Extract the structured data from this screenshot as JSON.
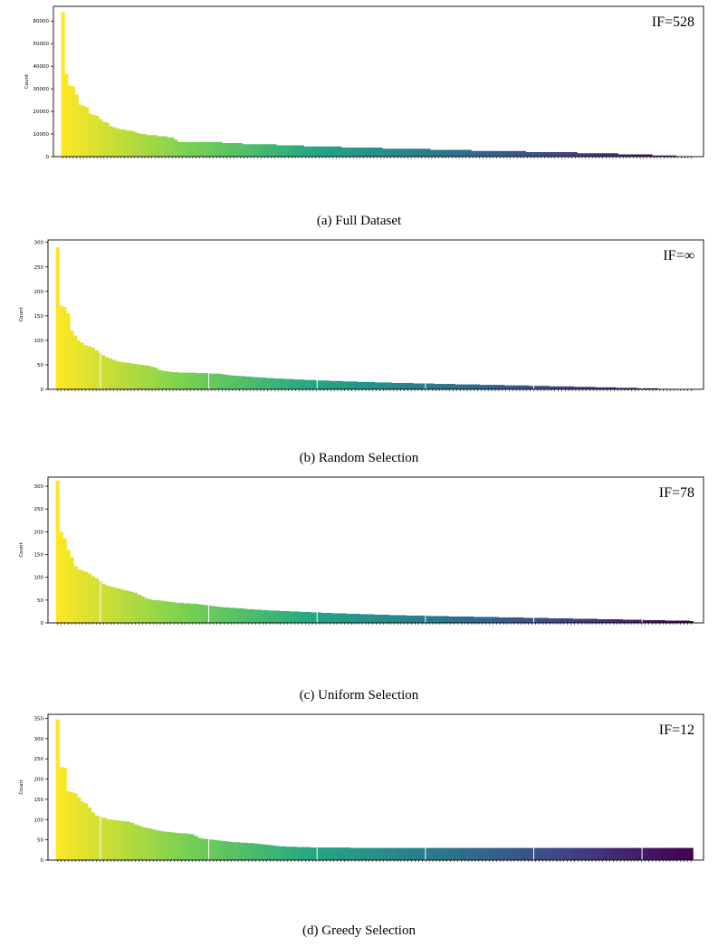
{
  "chart_data": [
    {
      "type": "bar",
      "caption": "(a) Full Dataset",
      "ylabel": "Count",
      "annotation": "IF=528",
      "yticks": [
        0,
        10000,
        20000,
        30000,
        40000,
        50000,
        60000
      ],
      "ylim": [
        0,
        66500
      ],
      "n_bars": 180,
      "values": [
        64000,
        36500,
        31500,
        31000,
        27500,
        23000,
        22500,
        22000,
        19000,
        18500,
        18000,
        16500,
        15500,
        15000,
        13500,
        13000,
        12500,
        12000,
        12000,
        11500,
        11500,
        11000,
        10500,
        10000,
        10000,
        9500,
        9500,
        9500,
        9000,
        9000,
        9000,
        8500,
        8500,
        7500,
        6500,
        6500,
        6500,
        6500,
        6500,
        6500,
        6500,
        6500,
        6500,
        6500,
        6500,
        6500,
        6500,
        6000,
        6000,
        6000,
        6000,
        6000,
        6000,
        5500,
        5500,
        5500,
        5500,
        5500,
        5500,
        5500,
        5500,
        5500,
        5500,
        5000,
        5000,
        5000,
        5000,
        5000,
        5000,
        5000,
        5000,
        4500,
        4500,
        4500,
        4500,
        4500,
        4500,
        4500,
        4500,
        4500,
        4500,
        4500,
        4000,
        4000,
        4000,
        4000,
        4000,
        4000,
        4000,
        4000,
        4000,
        4000,
        4000,
        4000,
        3500,
        3500,
        3500,
        3500,
        3500,
        3500,
        3500,
        3500,
        3500,
        3500,
        3500,
        3500,
        3500,
        3500,
        3000,
        3000,
        3000,
        3000,
        3000,
        3000,
        3000,
        3000,
        3000,
        3000,
        3000,
        3000,
        2500,
        2500,
        2500,
        2500,
        2500,
        2500,
        2500,
        2500,
        2500,
        2500,
        2500,
        2500,
        2500,
        2500,
        2500,
        2500,
        2000,
        2000,
        2000,
        2000,
        2000,
        2000,
        2000,
        2000,
        2000,
        2000,
        2000,
        2000,
        2000,
        2000,
        2000,
        1500,
        1500,
        1500,
        1500,
        1500,
        1500,
        1500,
        1500,
        1500,
        1500,
        1500,
        1500,
        1000,
        1000,
        1000,
        1000,
        1000,
        1000,
        1000,
        1000,
        1000,
        1000,
        500,
        500,
        500,
        500,
        500,
        500,
        500,
        200,
        200,
        120,
        120,
        120
      ]
    },
    {
      "type": "bar",
      "caption": "(b) Random Selection",
      "ylabel": "Count",
      "annotation": "IF=∞",
      "yticks": [
        0,
        50,
        100,
        150,
        200,
        250,
        300
      ],
      "ylim": [
        0,
        305
      ],
      "n_bars": 180,
      "values": [
        290,
        170,
        168,
        155,
        120,
        110,
        100,
        95,
        90,
        88,
        85,
        80,
        75,
        70,
        66,
        63,
        60,
        58,
        56,
        55,
        54,
        53,
        52,
        51,
        50,
        49,
        48,
        46,
        44,
        40,
        38,
        37,
        36,
        35,
        35,
        34,
        34,
        34,
        34,
        34,
        33,
        33,
        33,
        33,
        32,
        32,
        32,
        31,
        30,
        29,
        28,
        28,
        27,
        27,
        26,
        26,
        25,
        25,
        24,
        24,
        23,
        23,
        22,
        22,
        22,
        21,
        21,
        21,
        20,
        20,
        20,
        19,
        19,
        19,
        18,
        18,
        18,
        18,
        17,
        17,
        17,
        17,
        16,
        16,
        16,
        16,
        15,
        15,
        15,
        15,
        15,
        14,
        14,
        14,
        14,
        14,
        13,
        13,
        13,
        13,
        13,
        13,
        12,
        12,
        12,
        12,
        12,
        12,
        11,
        11,
        11,
        11,
        11,
        11,
        10,
        10,
        10,
        10,
        10,
        10,
        10,
        9,
        9,
        9,
        9,
        9,
        9,
        9,
        8,
        8,
        8,
        8,
        8,
        8,
        8,
        7,
        7,
        7,
        7,
        7,
        7,
        6,
        6,
        6,
        6,
        6,
        6,
        6,
        5,
        5,
        5,
        5,
        5,
        5,
        4,
        4,
        4,
        4,
        4,
        4,
        3,
        3,
        3,
        3,
        3,
        3,
        2,
        2,
        2,
        2,
        2,
        2,
        1,
        1,
        1,
        0,
        0,
        0,
        0,
        0,
        0,
        0
      ]
    },
    {
      "type": "bar",
      "caption": "(c) Uniform Selection",
      "ylabel": "Count",
      "annotation": "IF=78",
      "yticks": [
        0,
        50,
        100,
        150,
        200,
        250,
        300
      ],
      "ylim": [
        0,
        320
      ],
      "n_bars": 180,
      "values": [
        312,
        200,
        185,
        160,
        145,
        125,
        118,
        115,
        112,
        108,
        102,
        98,
        92,
        85,
        82,
        80,
        78,
        76,
        74,
        72,
        70,
        68,
        66,
        62,
        58,
        54,
        52,
        50,
        50,
        49,
        48,
        47,
        46,
        45,
        44,
        44,
        43,
        43,
        42,
        42,
        41,
        40,
        39,
        38,
        37,
        36,
        35,
        34,
        34,
        33,
        33,
        32,
        32,
        31,
        30,
        30,
        29,
        29,
        28,
        28,
        27,
        27,
        27,
        26,
        26,
        26,
        25,
        25,
        25,
        24,
        24,
        24,
        23,
        23,
        23,
        22,
        22,
        22,
        21,
        21,
        21,
        21,
        20,
        20,
        20,
        20,
        19,
        19,
        19,
        19,
        18,
        18,
        18,
        18,
        17,
        17,
        17,
        17,
        17,
        16,
        16,
        16,
        16,
        16,
        16,
        15,
        15,
        15,
        15,
        15,
        15,
        14,
        14,
        14,
        14,
        14,
        14,
        14,
        13,
        13,
        13,
        13,
        13,
        13,
        13,
        12,
        12,
        12,
        12,
        12,
        12,
        12,
        11,
        11,
        11,
        11,
        11,
        11,
        11,
        10,
        10,
        10,
        10,
        10,
        10,
        10,
        9,
        9,
        9,
        9,
        9,
        9,
        9,
        8,
        8,
        8,
        8,
        8,
        8,
        8,
        7,
        7,
        7,
        7,
        7,
        7,
        6,
        6,
        6,
        6,
        6,
        6,
        5,
        5,
        5,
        5,
        5,
        5,
        5,
        4
      ]
    },
    {
      "type": "bar",
      "caption": "(d) Greedy Selection",
      "ylabel": "Count",
      "annotation": "IF=12",
      "yticks": [
        0,
        50,
        100,
        150,
        200,
        250,
        300,
        350
      ],
      "ylim": [
        0,
        360
      ],
      "n_bars": 180,
      "values": [
        347,
        230,
        228,
        170,
        168,
        165,
        155,
        145,
        140,
        130,
        118,
        110,
        108,
        105,
        102,
        100,
        99,
        98,
        97,
        96,
        95,
        92,
        88,
        85,
        82,
        80,
        78,
        76,
        74,
        72,
        71,
        70,
        69,
        68,
        67,
        66,
        66,
        65,
        64,
        60,
        55,
        53,
        52,
        51,
        50,
        49,
        48,
        47,
        46,
        45,
        44,
        44,
        43,
        43,
        42,
        42,
        41,
        40,
        39,
        38,
        37,
        36,
        35,
        34,
        34,
        33,
        33,
        33,
        32,
        32,
        32,
        32,
        31,
        31,
        31,
        31,
        31,
        31,
        31,
        31,
        31,
        31,
        31,
        30,
        30,
        30,
        30,
        30,
        30,
        30,
        30,
        30,
        30,
        30,
        30,
        30,
        30,
        30,
        30,
        30,
        30,
        30,
        30,
        30,
        30,
        30,
        30,
        30,
        30,
        30,
        30,
        30,
        30,
        30,
        30,
        30,
        30,
        30,
        30,
        30,
        30,
        30,
        30,
        30,
        30,
        30,
        30,
        30,
        30,
        30,
        30,
        30,
        30,
        30,
        30,
        30,
        30,
        30,
        30,
        30,
        30,
        30,
        30,
        30,
        30,
        30,
        30,
        30,
        30,
        30,
        30,
        30,
        30,
        30,
        30,
        30,
        30,
        30,
        30,
        30,
        30,
        30,
        30,
        30,
        30,
        30,
        30,
        30,
        30,
        30,
        30,
        30,
        30,
        30,
        30,
        30,
        30,
        30,
        30,
        30
      ]
    }
  ]
}
